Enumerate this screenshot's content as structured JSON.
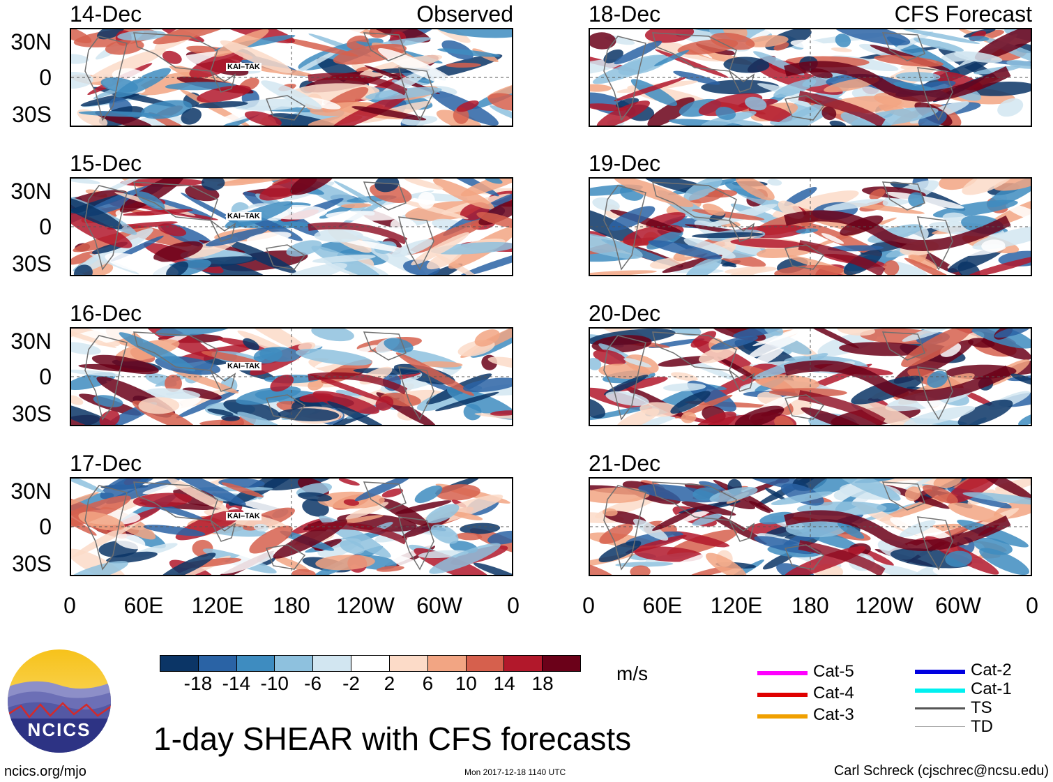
{
  "panels": [
    {
      "date": "14-Dec",
      "note": "Observed",
      "storm": "KAI–TAK"
    },
    {
      "date": "15-Dec",
      "note": "",
      "storm": "KAI–TAK"
    },
    {
      "date": "16-Dec",
      "note": "",
      "storm": "KAI–TAK"
    },
    {
      "date": "17-Dec",
      "note": "",
      "storm": "KAI–TAK"
    },
    {
      "date": "18-Dec",
      "note": "CFS Forecast",
      "storm": ""
    },
    {
      "date": "19-Dec",
      "note": "",
      "storm": ""
    },
    {
      "date": "20-Dec",
      "note": "",
      "storm": ""
    },
    {
      "date": "21-Dec",
      "note": "",
      "storm": ""
    }
  ],
  "lat_labels": [
    "30N",
    "0",
    "30S"
  ],
  "lon_labels": [
    "0",
    "60E",
    "120E",
    "180",
    "120W",
    "60W",
    "0"
  ],
  "colorbar": {
    "colors": [
      "#0b3566",
      "#2a63a5",
      "#3e8cc0",
      "#8ec1de",
      "#d2e6f1",
      "#ffffff",
      "#fcdbc8",
      "#f2a583",
      "#d6604d",
      "#b2182b",
      "#6b0119"
    ],
    "labels": [
      "-18",
      "-14",
      "-10",
      "-6",
      "-2",
      "2",
      "6",
      "10",
      "14",
      "18"
    ],
    "unit": "m/s"
  },
  "legend": [
    {
      "label": "Cat-5",
      "color": "#ff00ff"
    },
    {
      "label": "Cat-4",
      "color": "#e00000"
    },
    {
      "label": "Cat-3",
      "color": "#f0a000"
    },
    {
      "label": "Cat-2",
      "color": "#0000e0"
    },
    {
      "label": "Cat-1",
      "color": "#00f0f0"
    },
    {
      "label": "TS",
      "color": "#555555"
    },
    {
      "label": "TD",
      "color": "#aaaaaa"
    }
  ],
  "logo_text": "NCICS",
  "title": "1-day SHEAR with CFS forecasts",
  "footer": {
    "left": "ncics.org/mjo",
    "center": "Mon 2017-12-18 1140 UTC",
    "right": "Carl Schreck (cjschrec@ncsu.edu)"
  }
}
